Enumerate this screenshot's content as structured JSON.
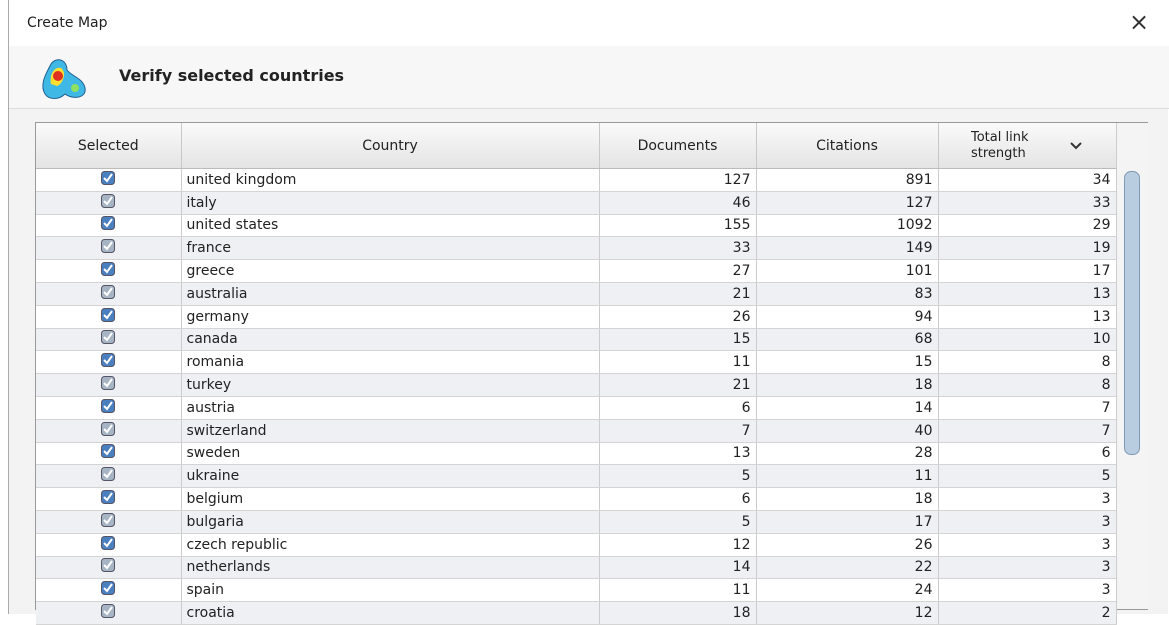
{
  "window": {
    "title": "Create Map",
    "close": "×"
  },
  "header": {
    "title": "Verify selected countries"
  },
  "table": {
    "columns": [
      "Selected",
      "Country",
      "Documents",
      "Citations",
      "Total link strength"
    ],
    "rows": [
      {
        "selected": true,
        "country": "united kingdom",
        "documents": 127,
        "citations": 891,
        "total_link_strength": 34
      },
      {
        "selected": true,
        "country": "italy",
        "documents": 46,
        "citations": 127,
        "total_link_strength": 33
      },
      {
        "selected": true,
        "country": "united states",
        "documents": 155,
        "citations": 1092,
        "total_link_strength": 29
      },
      {
        "selected": true,
        "country": "france",
        "documents": 33,
        "citations": 149,
        "total_link_strength": 19
      },
      {
        "selected": true,
        "country": "greece",
        "documents": 27,
        "citations": 101,
        "total_link_strength": 17
      },
      {
        "selected": true,
        "country": "australia",
        "documents": 21,
        "citations": 83,
        "total_link_strength": 13
      },
      {
        "selected": true,
        "country": "germany",
        "documents": 26,
        "citations": 94,
        "total_link_strength": 13
      },
      {
        "selected": true,
        "country": "canada",
        "documents": 15,
        "citations": 68,
        "total_link_strength": 10
      },
      {
        "selected": true,
        "country": "romania",
        "documents": 11,
        "citations": 15,
        "total_link_strength": 8
      },
      {
        "selected": true,
        "country": "turkey",
        "documents": 21,
        "citations": 18,
        "total_link_strength": 8
      },
      {
        "selected": true,
        "country": "austria",
        "documents": 6,
        "citations": 14,
        "total_link_strength": 7
      },
      {
        "selected": true,
        "country": "switzerland",
        "documents": 7,
        "citations": 40,
        "total_link_strength": 7
      },
      {
        "selected": true,
        "country": "sweden",
        "documents": 13,
        "citations": 28,
        "total_link_strength": 6
      },
      {
        "selected": true,
        "country": "ukraine",
        "documents": 5,
        "citations": 11,
        "total_link_strength": 5
      },
      {
        "selected": true,
        "country": "belgium",
        "documents": 6,
        "citations": 18,
        "total_link_strength": 3
      },
      {
        "selected": true,
        "country": "bulgaria",
        "documents": 5,
        "citations": 17,
        "total_link_strength": 3
      },
      {
        "selected": true,
        "country": "czech republic",
        "documents": 12,
        "citations": 26,
        "total_link_strength": 3
      },
      {
        "selected": true,
        "country": "netherlands",
        "documents": 14,
        "citations": 22,
        "total_link_strength": 3
      },
      {
        "selected": true,
        "country": "spain",
        "documents": 11,
        "citations": 24,
        "total_link_strength": 3
      },
      {
        "selected": true,
        "country": "croatia",
        "documents": 18,
        "citations": 12,
        "total_link_strength": 2
      }
    ]
  }
}
